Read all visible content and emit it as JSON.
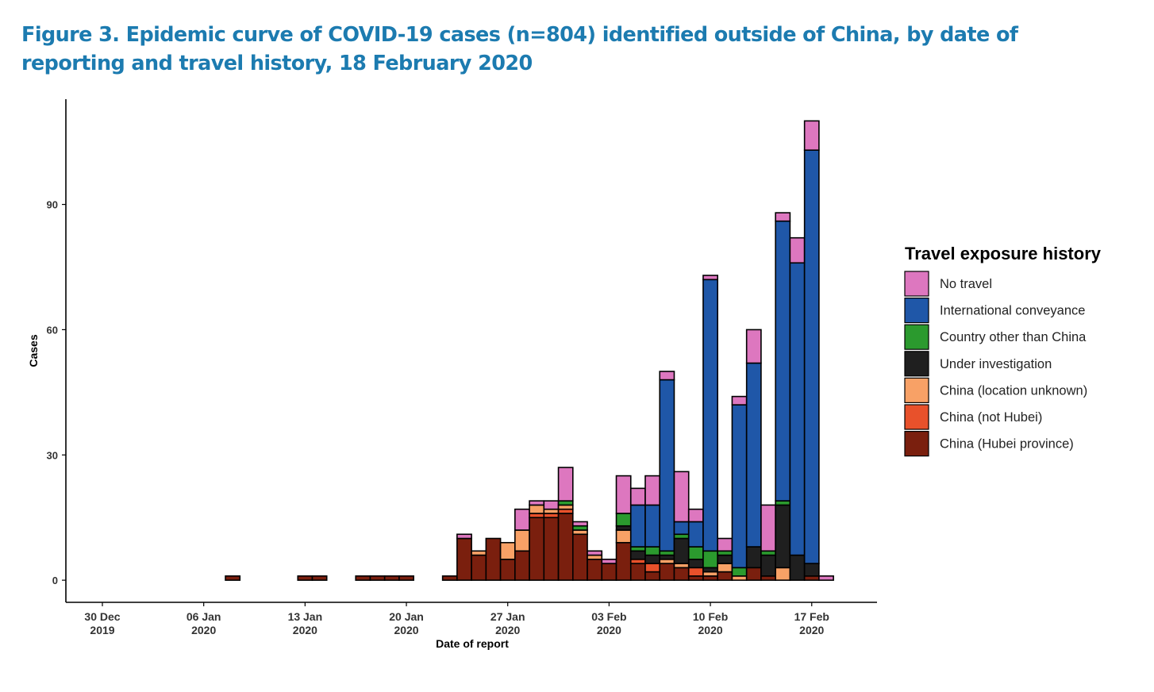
{
  "chart_data": {
    "type": "stacked_bar",
    "title": "Figure 3. Epidemic curve of COVID-19 cases (n=804) identified outside of China, by date of reporting and travel history, 18 February 2020",
    "x_label": "Date of report",
    "y_label": "Cases",
    "legend_title": "Travel exposure history",
    "legend_position": "right",
    "categories": [
      "30 Dec 2019",
      null,
      null,
      null,
      null,
      null,
      null,
      "06 Jan 2020",
      null,
      null,
      null,
      null,
      null,
      null,
      "13 Jan 2020",
      null,
      null,
      null,
      null,
      null,
      null,
      "20 Jan 2020",
      null,
      null,
      null,
      null,
      null,
      null,
      "27 Jan 2020",
      null,
      null,
      null,
      null,
      null,
      null,
      "03 Feb 2020",
      null,
      null,
      null,
      null,
      null,
      null,
      "10 Feb 2020",
      null,
      null,
      null,
      null,
      null,
      null,
      "17 Feb 2020",
      null
    ],
    "series": [
      {
        "name": "China (Hubei province)",
        "color": "#7a1f0e",
        "values": [
          0,
          0,
          0,
          0,
          0,
          0,
          0,
          0,
          0,
          1,
          0,
          0,
          0,
          0,
          1,
          1,
          0,
          0,
          1,
          1,
          1,
          1,
          0,
          0,
          1,
          10,
          6,
          10,
          5,
          7,
          15,
          15,
          16,
          11,
          5,
          4,
          9,
          4,
          2,
          4,
          3,
          1,
          1,
          2,
          0,
          3,
          1,
          0,
          0,
          1,
          0
        ]
      },
      {
        "name": "China (not Hubei)",
        "color": "#e8512b",
        "values": [
          0,
          0,
          0,
          0,
          0,
          0,
          0,
          0,
          0,
          0,
          0,
          0,
          0,
          0,
          0,
          0,
          0,
          0,
          0,
          0,
          0,
          0,
          0,
          0,
          0,
          0,
          0,
          0,
          0,
          0,
          1,
          1,
          1,
          0,
          0,
          0,
          0,
          1,
          2,
          0,
          0,
          2,
          0,
          0,
          0,
          0,
          0,
          0,
          0,
          0,
          0
        ]
      },
      {
        "name": "China (location unknown)",
        "color": "#f8a166",
        "values": [
          0,
          0,
          0,
          0,
          0,
          0,
          0,
          0,
          0,
          0,
          0,
          0,
          0,
          0,
          0,
          0,
          0,
          0,
          0,
          0,
          0,
          0,
          0,
          0,
          0,
          0,
          1,
          0,
          4,
          5,
          2,
          1,
          1,
          1,
          1,
          0,
          3,
          0,
          0,
          1,
          1,
          0,
          1,
          2,
          1,
          0,
          0,
          3,
          0,
          0,
          0
        ]
      },
      {
        "name": "Under investigation",
        "color": "#1f1f1f",
        "values": [
          0,
          0,
          0,
          0,
          0,
          0,
          0,
          0,
          0,
          0,
          0,
          0,
          0,
          0,
          0,
          0,
          0,
          0,
          0,
          0,
          0,
          0,
          0,
          0,
          0,
          0,
          0,
          0,
          0,
          0,
          0,
          0,
          0,
          0,
          0,
          0,
          1,
          2,
          2,
          1,
          6,
          2,
          1,
          2,
          0,
          5,
          5,
          15,
          6,
          3,
          0
        ]
      },
      {
        "name": "Country other than China",
        "color": "#2b9a2e",
        "values": [
          0,
          0,
          0,
          0,
          0,
          0,
          0,
          0,
          0,
          0,
          0,
          0,
          0,
          0,
          0,
          0,
          0,
          0,
          0,
          0,
          0,
          0,
          0,
          0,
          0,
          0,
          0,
          0,
          0,
          0,
          0,
          0,
          1,
          1,
          0,
          0,
          3,
          1,
          2,
          1,
          1,
          3,
          4,
          1,
          2,
          0,
          1,
          1,
          0,
          0,
          0
        ]
      },
      {
        "name": "International conveyance",
        "color": "#1f57a8",
        "values": [
          0,
          0,
          0,
          0,
          0,
          0,
          0,
          0,
          0,
          0,
          0,
          0,
          0,
          0,
          0,
          0,
          0,
          0,
          0,
          0,
          0,
          0,
          0,
          0,
          0,
          0,
          0,
          0,
          0,
          0,
          0,
          0,
          0,
          0,
          0,
          0,
          0,
          10,
          10,
          41,
          3,
          6,
          65,
          0,
          39,
          44,
          0,
          67,
          70,
          99,
          0
        ]
      },
      {
        "name": "No travel",
        "color": "#dd77bf",
        "values": [
          0,
          0,
          0,
          0,
          0,
          0,
          0,
          0,
          0,
          0,
          0,
          0,
          0,
          0,
          0,
          0,
          0,
          0,
          0,
          0,
          0,
          0,
          0,
          0,
          0,
          1,
          0,
          0,
          0,
          5,
          1,
          2,
          8,
          1,
          1,
          1,
          9,
          4,
          7,
          2,
          12,
          3,
          1,
          3,
          2,
          8,
          11,
          2,
          6,
          7,
          1
        ]
      }
    ],
    "ylim": [
      -5.3,
      115.2
    ],
    "yticks": [
      0,
      30,
      60,
      90
    ],
    "grid": false
  }
}
